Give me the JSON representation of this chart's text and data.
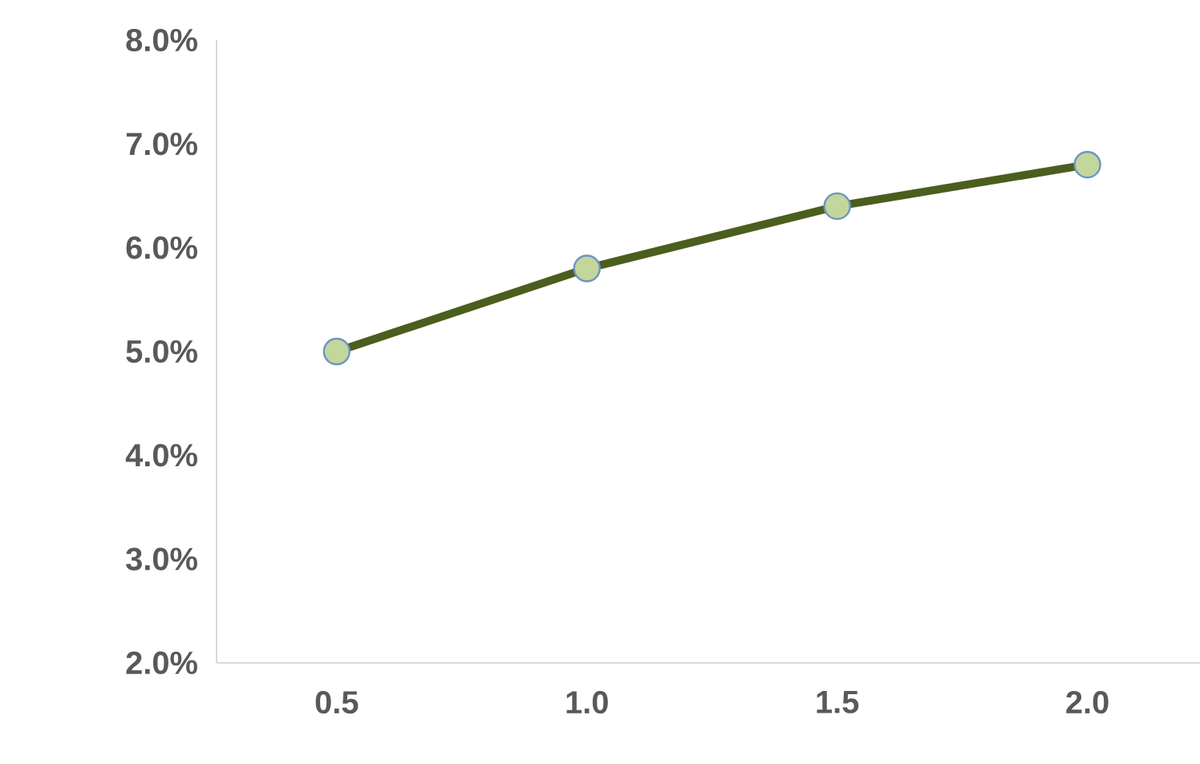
{
  "chart_data": {
    "type": "line",
    "categories": [
      "0.5",
      "1.0",
      "1.5",
      "2.0"
    ],
    "series": [
      {
        "color": "#4a5e1e",
        "values": [
          5.0,
          5.8,
          6.4,
          6.8
        ]
      }
    ],
    "ylim": [
      2,
      8
    ],
    "yticks": [
      {
        "value": 2,
        "label": "2.0%"
      },
      {
        "value": 3,
        "label": "3.0%"
      },
      {
        "value": 4,
        "label": "4.0%"
      },
      {
        "value": 5,
        "label": "5.0%"
      },
      {
        "value": 6,
        "label": "6.0%"
      },
      {
        "value": 7,
        "label": "7.0%"
      },
      {
        "value": 8,
        "label": "8.0%"
      }
    ],
    "marker": "circle",
    "line_style": "solid",
    "grid": false
  }
}
